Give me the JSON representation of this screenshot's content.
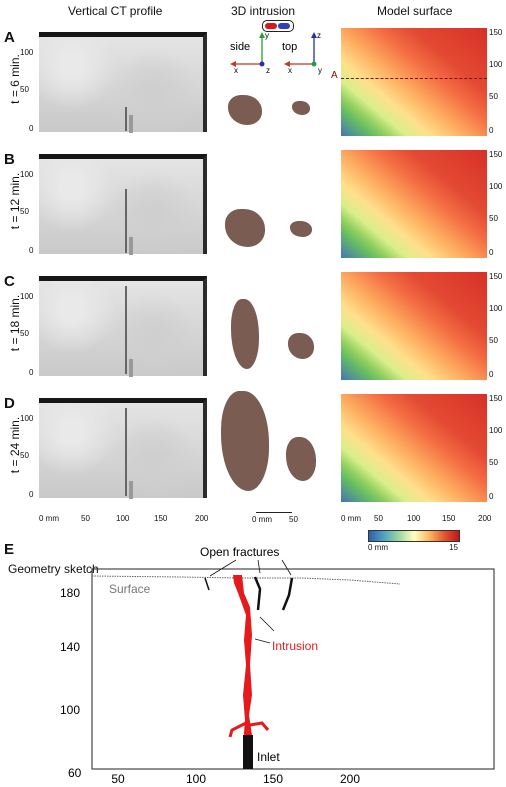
{
  "headers": {
    "ct": "Vertical CT profile",
    "intrusion": "3D intrusion",
    "model": "Model surface"
  },
  "panels": [
    {
      "letter": "A",
      "time": "t = 6 min."
    },
    {
      "letter": "B",
      "time": "t = 12 min."
    },
    {
      "letter": "C",
      "time": "t = 18 min."
    },
    {
      "letter": "D",
      "time": "t = 24 min."
    }
  ],
  "ct_yticks": [
    "100",
    "50",
    "0"
  ],
  "ct_xticks": [
    "0 mm",
    "50",
    "100",
    "150",
    "200"
  ],
  "model_yticks": [
    "150",
    "100",
    "50",
    "0"
  ],
  "model_xticks": [
    "0 mm",
    "50",
    "100",
    "150",
    "200"
  ],
  "views": {
    "side": "side",
    "top": "top",
    "axes": [
      "y",
      "z",
      "x",
      "z",
      "x",
      "y"
    ]
  },
  "scale_ticks": [
    "0 mm",
    "50"
  ],
  "profile_marker": "A",
  "colorbar": {
    "min": "0 mm",
    "max": "15"
  },
  "panel_e": {
    "letter": "E",
    "title": "Geometry sketch",
    "labels": {
      "open_fractures": "Open fractures",
      "surface": "Surface",
      "intrusion": "Intrusion",
      "inlet": "Inlet"
    },
    "colors": {
      "intrusion": "#e41a1c",
      "surface": "#777777"
    },
    "y_ticks": [
      "180",
      "140",
      "100",
      "60"
    ],
    "x_ticks": [
      "50",
      "100",
      "150",
      "200"
    ]
  }
}
